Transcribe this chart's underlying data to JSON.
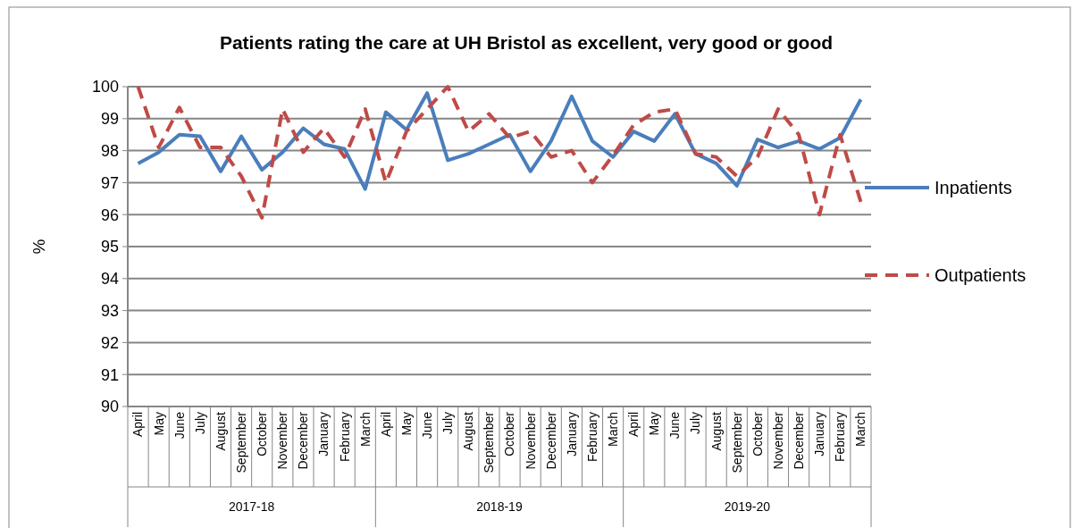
{
  "chart_data": {
    "type": "line",
    "title": "Patients rating the care at UH Bristol as excellent, very good or good",
    "ylabel": "%",
    "categories": [
      "April",
      "May",
      "June",
      "July",
      "August",
      "September",
      "October",
      "November",
      "December",
      "January",
      "February",
      "March",
      "April",
      "May",
      "June",
      "July",
      "August",
      "September",
      "October",
      "November",
      "December",
      "January",
      "February",
      "March",
      "April",
      "May",
      "June",
      "July",
      "August",
      "September",
      "October",
      "November",
      "December",
      "January",
      "February",
      "March"
    ],
    "annotations": [
      "2017-18",
      "2018-19",
      "2019-20"
    ],
    "series": [
      {
        "name": "Inpatients",
        "color": "#4a7ebb",
        "line_style": "solid",
        "values": [
          97.6,
          97.95,
          98.5,
          98.45,
          97.35,
          98.45,
          97.4,
          97.95,
          98.7,
          98.2,
          98.05,
          96.8,
          99.2,
          98.65,
          99.8,
          97.7,
          97.9,
          98.2,
          98.5,
          97.35,
          98.3,
          99.7,
          98.3,
          97.8,
          98.6,
          98.3,
          99.15,
          97.9,
          97.6,
          96.9,
          98.35,
          98.1,
          98.3,
          98.05,
          98.4,
          99.6
        ]
      },
      {
        "name": "Outpatients",
        "color": "#be4b48",
        "line_style": "dashed",
        "values": [
          100,
          98.1,
          99.35,
          98.1,
          98.1,
          97.2,
          95.9,
          99.3,
          97.95,
          98.7,
          97.8,
          99.3,
          97.0,
          98.6,
          99.3,
          100,
          98.6,
          99.15,
          98.4,
          98.6,
          97.8,
          98.0,
          97.0,
          97.85,
          98.8,
          99.2,
          99.3,
          97.9,
          97.8,
          97.2,
          97.8,
          99.3,
          98.5,
          96.0,
          98.5,
          96.4
        ]
      }
    ],
    "ylim": [
      90,
      100
    ],
    "yticks": [
      90,
      91,
      92,
      93,
      94,
      95,
      96,
      97,
      98,
      99,
      100
    ],
    "grid": "y",
    "legend": "right"
  }
}
